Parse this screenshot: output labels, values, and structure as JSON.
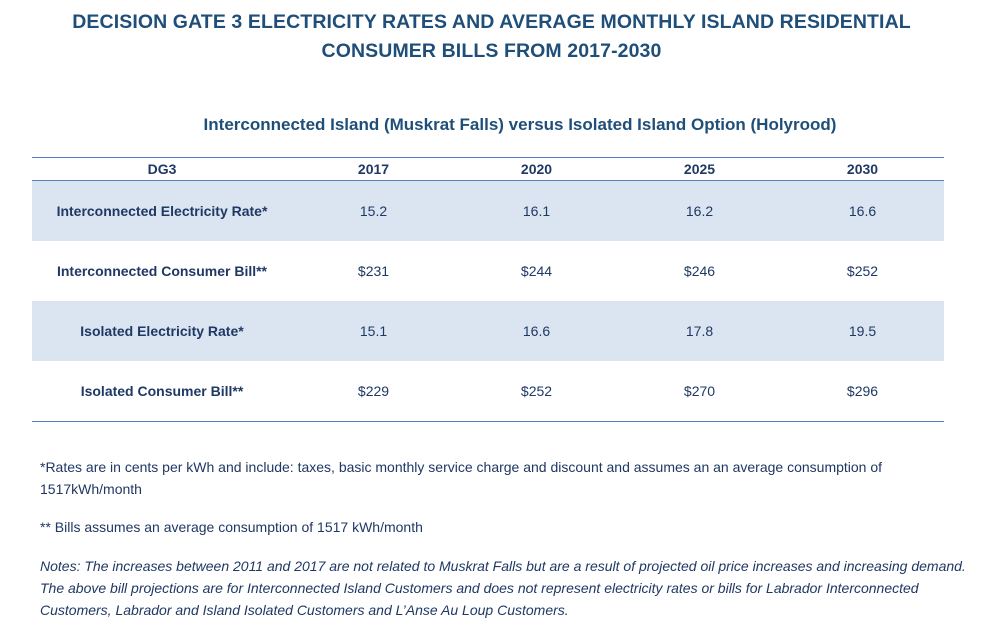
{
  "title": {
    "line1": "DECISION GATE 3 ELECTRICITY RATES AND AVERAGE MONTHLY ISLAND RESIDENTIAL",
    "line2": "CONSUMER BILLS FROM 2017-2030"
  },
  "subtitle": "Interconnected Island (Muskrat Falls) versus Isolated Island Option (Holyrood)",
  "table": {
    "headers": [
      "DG3",
      "2017",
      "2020",
      "2025",
      "2030"
    ],
    "rows": [
      {
        "label": "Interconnected Electricity Rate*",
        "values": [
          "15.2",
          "16.1",
          "16.2",
          "16.6"
        ]
      },
      {
        "label": "Interconnected Consumer Bill**",
        "values": [
          "$231",
          "$244",
          "$246",
          "$252"
        ]
      },
      {
        "label": "Isolated Electricity Rate*",
        "values": [
          "15.1",
          "16.6",
          "17.8",
          "19.5"
        ]
      },
      {
        "label": "Isolated Consumer Bill**",
        "values": [
          "$229",
          "$252",
          "$270",
          "$296"
        ]
      }
    ],
    "row_shading": "#dbe5f1",
    "rule_color": "#4f81bd"
  },
  "notes": {
    "rates_note": "*Rates are in cents per kWh  and include: taxes, basic monthly service charge and discount and assumes an an average consumption of 1517kWh/month",
    "bills_note": "** Bills assumes an average consumption of 1517 kWh/month",
    "general_note": "Notes: The increases between 2011 and 2017 are not related to Muskrat Falls but are a result of projected oil price increases and increasing demand.  The above bill projections are for Interconnected Island Customers and does not represent electricity rates or bills for Labrador Interconnected Customers, Labrador and Island Isolated Customers and L’Anse Au Loup Customers."
  },
  "colors": {
    "heading": "#1f4e79",
    "text": "#1f3864"
  }
}
